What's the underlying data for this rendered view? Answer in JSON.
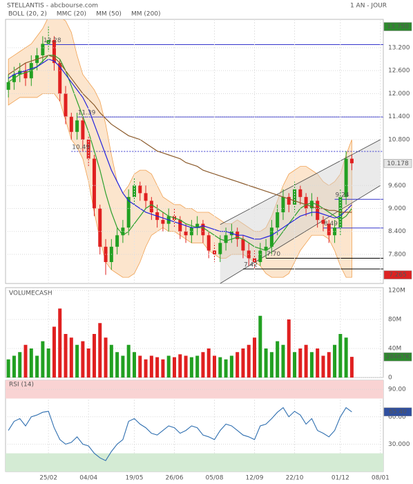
{
  "chart_data": [
    {
      "type": "candlestick",
      "title": "STELLANTIS - abcbourse.com",
      "subtitle": "1 AN - JOUR",
      "categories": [
        null,
        null,
        null,
        null,
        null,
        null,
        null,
        "25/02",
        null,
        null,
        null,
        null,
        null,
        null,
        "04/04",
        null,
        null,
        null,
        null,
        null,
        null,
        null,
        "19/05",
        null,
        null,
        null,
        null,
        null,
        null,
        "26/06",
        null,
        null,
        null,
        null,
        null,
        null,
        "05/08",
        null,
        null,
        null,
        null,
        null,
        null,
        "12/09",
        null,
        null,
        null,
        null,
        null,
        null,
        "22/10",
        null,
        null,
        null,
        null,
        null,
        null,
        null,
        "01/12",
        null,
        null,
        null,
        null,
        null,
        null,
        "08/01"
      ],
      "open": [
        12.1,
        12.3,
        12.5,
        12.6,
        12.4,
        12.8,
        13.0,
        13.3,
        13.4,
        12.8,
        12.0,
        11.4,
        11.0,
        11.3,
        10.8,
        10.3,
        9.0,
        8.0,
        7.6,
        8.0,
        8.3,
        8.5,
        9.3,
        9.6,
        9.4,
        9.2,
        8.9,
        8.7,
        8.6,
        8.8,
        8.7,
        8.4,
        8.3,
        8.5,
        8.6,
        8.3,
        7.9,
        7.8,
        8.1,
        8.3,
        8.4,
        8.2,
        7.9,
        7.7,
        7.6,
        7.9,
        8.0,
        8.5,
        8.9,
        9.3,
        9.1,
        9.5,
        9.3,
        9.0,
        9.2,
        8.7,
        8.6,
        8.3,
        8.5,
        9.3,
        10.3,
        null,
        null,
        null,
        null,
        null
      ],
      "high": [
        12.5,
        12.7,
        12.8,
        12.8,
        13.0,
        13.2,
        13.5,
        13.75,
        13.5,
        12.9,
        12.2,
        11.5,
        11.5,
        11.4,
        10.9,
        10.4,
        9.1,
        8.2,
        8.2,
        8.5,
        8.7,
        9.5,
        9.8,
        9.7,
        9.6,
        9.3,
        9.1,
        8.9,
        9.0,
        9.0,
        8.8,
        8.6,
        8.7,
        8.8,
        8.7,
        8.4,
        8.1,
        8.3,
        8.5,
        8.6,
        8.5,
        8.3,
        8.1,
        7.9,
        8.1,
        8.2,
        8.7,
        9.1,
        9.5,
        9.4,
        9.7,
        9.6,
        9.4,
        9.4,
        9.3,
        8.8,
        8.7,
        8.7,
        9.5,
        10.5,
        10.4,
        null,
        null,
        null,
        null,
        null
      ],
      "low": [
        11.9,
        12.1,
        12.3,
        12.2,
        12.2,
        12.6,
        12.8,
        13.1,
        12.6,
        11.8,
        11.2,
        10.8,
        10.8,
        10.49,
        10.1,
        8.8,
        7.8,
        7.265,
        7.4,
        7.8,
        8.1,
        8.3,
        9.1,
        9.2,
        9.0,
        8.7,
        8.5,
        8.4,
        8.4,
        8.5,
        8.2,
        8.1,
        8.1,
        8.3,
        8.1,
        7.7,
        7.6,
        7.6,
        7.9,
        8.1,
        8.0,
        7.7,
        7.5,
        7.42,
        7.5,
        7.7,
        7.8,
        8.3,
        8.7,
        8.9,
        8.9,
        9.1,
        8.8,
        8.8,
        8.5,
        8.4,
        8.1,
        8.1,
        8.3,
        9.1,
        10.0,
        null,
        null,
        null,
        null,
        null
      ],
      "close": [
        12.3,
        12.5,
        12.6,
        12.4,
        12.8,
        13.0,
        13.3,
        13.4,
        12.8,
        12.0,
        11.4,
        11.0,
        11.3,
        10.8,
        10.3,
        9.0,
        8.0,
        7.6,
        8.0,
        8.3,
        8.5,
        9.3,
        9.6,
        9.4,
        9.2,
        8.9,
        8.7,
        8.6,
        8.8,
        8.7,
        8.4,
        8.3,
        8.5,
        8.6,
        8.3,
        7.9,
        7.8,
        8.1,
        8.3,
        8.4,
        8.2,
        7.9,
        7.7,
        7.6,
        7.9,
        8.0,
        8.5,
        8.9,
        9.3,
        9.1,
        9.5,
        9.3,
        9.0,
        9.2,
        8.7,
        8.6,
        8.3,
        8.5,
        9.3,
        10.3,
        10.18,
        null,
        null,
        null,
        null,
        null
      ],
      "up_color": "#22a022",
      "down_color": "#e02020",
      "ylim": [
        7.04,
        13.94
      ],
      "yticks": [
        {
          "value": 7.8,
          "label": "7.800"
        },
        {
          "value": 8.4,
          "label": "8.400"
        },
        {
          "value": 9,
          "label": "9.000"
        },
        {
          "value": 9.6,
          "label": "9.600"
        },
        {
          "value": 10.8,
          "label": "10.800"
        },
        {
          "value": 11.4,
          "label": "11.400"
        },
        {
          "value": 12,
          "label": "12.000"
        },
        {
          "value": 12.6,
          "label": "12.600"
        },
        {
          "value": 13.2,
          "label": "13.200"
        }
      ],
      "grid": true,
      "bollinger": {
        "name": "BOLL (20, 2)",
        "color": "#f0a050",
        "fill": "#fbdcbc",
        "upper": [
          12.9,
          13.0,
          13.1,
          13.2,
          13.3,
          13.5,
          13.7,
          14.0,
          14.0,
          14.0,
          13.9,
          13.6,
          13.0,
          12.5,
          12.3,
          12.1,
          11.8,
          11.2,
          10.4,
          9.7,
          9.4,
          9.6,
          9.9,
          10.0,
          10.0,
          9.9,
          9.6,
          9.3,
          9.2,
          9.1,
          9.1,
          9.0,
          9.0,
          8.9,
          8.9,
          8.9,
          8.8,
          8.7,
          8.6,
          8.6,
          8.7,
          8.6,
          8.5,
          8.4,
          8.4,
          8.5,
          8.8,
          9.2,
          9.6,
          9.9,
          10.0,
          10.1,
          10.1,
          10.0,
          9.9,
          9.7,
          9.6,
          9.7,
          9.9,
          10.4,
          10.8,
          null,
          null,
          null,
          null,
          null
        ],
        "lower": [
          11.7,
          11.8,
          11.9,
          11.9,
          11.9,
          11.9,
          12.0,
          12.0,
          12.0,
          11.8,
          11.3,
          10.8,
          10.6,
          10.3,
          9.7,
          8.9,
          8.2,
          7.6,
          7.4,
          7.3,
          7.2,
          7.2,
          7.3,
          7.6,
          8.0,
          8.3,
          8.4,
          8.5,
          8.4,
          8.4,
          8.3,
          8.2,
          8.1,
          8.1,
          8.1,
          7.9,
          7.8,
          7.7,
          7.7,
          7.8,
          7.8,
          7.8,
          7.7,
          7.6,
          7.5,
          7.3,
          7.2,
          7.2,
          7.2,
          7.3,
          7.6,
          7.9,
          8.1,
          8.3,
          8.3,
          8.3,
          8.2,
          7.9,
          7.5,
          7.2,
          7.2,
          null,
          null,
          null,
          null,
          null
        ]
      },
      "series": [
        {
          "name": "MMC (20)",
          "color": "#2ca02c",
          "values": [
            12.3,
            12.4,
            12.5,
            12.55,
            12.6,
            12.7,
            12.85,
            13.0,
            13.0,
            12.9,
            12.6,
            12.2,
            11.8,
            11.4,
            11.0,
            10.5,
            10.0,
            9.4,
            8.9,
            8.5,
            8.3,
            8.4,
            8.6,
            8.8,
            9.0,
            9.1,
            9.0,
            8.9,
            8.8,
            8.75,
            8.7,
            8.6,
            8.55,
            8.5,
            8.5,
            8.4,
            8.3,
            8.2,
            8.15,
            8.2,
            8.25,
            8.2,
            8.1,
            8.0,
            7.95,
            7.9,
            8.0,
            8.2,
            8.4,
            8.6,
            8.8,
            9.0,
            9.1,
            9.15,
            9.1,
            9.0,
            8.9,
            8.8,
            8.7,
            8.8,
            9.0,
            null,
            null,
            null,
            null,
            null
          ]
        },
        {
          "name": "MM (50)",
          "color": "#2222dd",
          "values": [
            12.4,
            12.5,
            12.55,
            12.6,
            12.65,
            12.7,
            12.8,
            12.9,
            12.85,
            12.7,
            12.5,
            12.3,
            12.1,
            11.9,
            11.6,
            11.2,
            10.8,
            10.4,
            10.0,
            9.7,
            9.4,
            9.2,
            9.1,
            9.0,
            8.9,
            8.85,
            8.8,
            8.75,
            8.7,
            8.65,
            8.6,
            8.55,
            8.5,
            8.5,
            8.55,
            8.5,
            8.45,
            8.4,
            8.4,
            8.35,
            8.3,
            8.3,
            8.25,
            8.2,
            8.2,
            8.25,
            8.3,
            8.4,
            8.5,
            8.6,
            8.7,
            8.8,
            8.85,
            8.9,
            8.9,
            8.85,
            8.8,
            8.75,
            8.8,
            8.95,
            9.1,
            null,
            null,
            null,
            null,
            null
          ]
        },
        {
          "name": "MM (200)",
          "color": "#8b5a2b",
          "values": [
            12.5,
            12.6,
            12.7,
            12.8,
            12.85,
            12.9,
            12.95,
            13.0,
            12.95,
            12.8,
            12.6,
            12.4,
            12.2,
            12.0,
            11.85,
            11.7,
            11.5,
            11.35,
            11.2,
            11.1,
            11.0,
            10.9,
            10.85,
            10.8,
            10.7,
            10.6,
            10.5,
            10.45,
            10.4,
            10.35,
            10.3,
            10.2,
            10.15,
            10.1,
            10.0,
            9.95,
            9.9,
            9.85,
            9.8,
            9.75,
            9.7,
            9.65,
            9.6,
            9.55,
            9.5,
            9.45,
            9.4,
            9.35,
            9.3,
            9.25,
            9.2,
            9.15,
            9.1,
            9.05,
            9.0,
            9.0,
            8.95,
            8.95,
            8.9,
            8.9,
            8.9,
            null,
            null,
            null,
            null,
            null
          ]
        }
      ],
      "levels": [
        {
          "label": "13.28",
          "value": 13.28,
          "x": 6,
          "color": "#3333cc",
          "dashed": false
        },
        {
          "label": "11.39",
          "value": 11.39,
          "x": 12,
          "color": "#3333cc",
          "dashed": false
        },
        {
          "label": "10.49",
          "value": 10.49,
          "x": 11,
          "color": "#3333cc",
          "dashed": true
        },
        {
          "label": "9.24",
          "value": 9.24,
          "x": 57,
          "color": "#3333cc",
          "dashed": false
        },
        {
          "label": "8.49",
          "value": 8.49,
          "x": 55,
          "color": "#3333cc",
          "dashed": false
        },
        {
          "label": "7.70",
          "value": 7.7,
          "x": 45,
          "color": "#000000",
          "dashed": false
        },
        {
          "label": "7.42",
          "value": 7.42,
          "x": 41,
          "color": "#000000",
          "dashed": false
        }
      ],
      "channel": {
        "x": [
          37,
          65
        ],
        "upper": [
          8.58,
          10.8
        ],
        "lower": [
          7.04,
          9.6
        ]
      },
      "badges": [
        {
          "value": 13.75,
          "label": "13.750",
          "color": "#2d8a2d",
          "text_color": "#ffffff"
        },
        {
          "value": 10.178,
          "label": "10.178",
          "color": "#e6e6e6",
          "text_color": "#222222"
        },
        {
          "value": 7.265,
          "label": "7.265",
          "color": "#dd2222",
          "text_color": "#ffffff"
        }
      ]
    },
    {
      "type": "bar",
      "title": "VOLUMECASH",
      "title_color": "#2ca02c",
      "values": [
        25,
        30,
        35,
        45,
        40,
        30,
        50,
        40,
        70,
        95,
        60,
        55,
        45,
        50,
        40,
        60,
        75,
        55,
        45,
        35,
        30,
        45,
        35,
        30,
        25,
        30,
        28,
        25,
        30,
        28,
        32,
        30,
        28,
        30,
        35,
        40,
        30,
        28,
        25,
        30,
        35,
        40,
        45,
        55,
        85,
        40,
        35,
        50,
        45,
        80,
        35,
        40,
        45,
        35,
        40,
        30,
        35,
        45,
        60,
        55,
        28.467,
        null,
        null,
        null,
        null,
        null
      ],
      "ylim": [
        0,
        120
      ],
      "yticks": [
        0,
        {
          "value": 40,
          "label": "40M"
        },
        {
          "value": 80,
          "label": "80M"
        },
        {
          "value": 120,
          "label": "120M"
        }
      ],
      "badges": [
        {
          "value": 28.467,
          "label": "28467K",
          "color": "#2d8a2d",
          "text_color": "#ffffff"
        }
      ]
    },
    {
      "type": "line",
      "title": "RSI (14)",
      "title_color": "#3355aa",
      "color": "#2f6fb0",
      "values": [
        45,
        55,
        58,
        50,
        60,
        62,
        65,
        66,
        48,
        35,
        30,
        32,
        38,
        30,
        28,
        20,
        15,
        12,
        22,
        30,
        35,
        55,
        58,
        52,
        48,
        42,
        40,
        45,
        50,
        48,
        42,
        45,
        50,
        48,
        40,
        38,
        35,
        45,
        52,
        50,
        45,
        40,
        38,
        35,
        50,
        52,
        58,
        65,
        70,
        60,
        66,
        62,
        52,
        58,
        45,
        42,
        38,
        45,
        60,
        70,
        65.4,
        null,
        null,
        null,
        null,
        null
      ],
      "ylim": [
        0,
        100
      ],
      "yticks": [
        {
          "value": 30,
          "label": "30.000"
        },
        {
          "value": 60,
          "label": "60.00"
        },
        {
          "value": 90,
          "label": "90.00"
        }
      ],
      "bands": [
        {
          "from": 80,
          "to": 100,
          "color": "#f9d3d3"
        },
        {
          "from": 0,
          "to": 20,
          "color": "#d4ebd4"
        }
      ],
      "badges": [
        {
          "value": 65.4,
          "label": "65.40",
          "color": "#2f4f9f",
          "text_color": "#ffffff"
        }
      ]
    }
  ]
}
